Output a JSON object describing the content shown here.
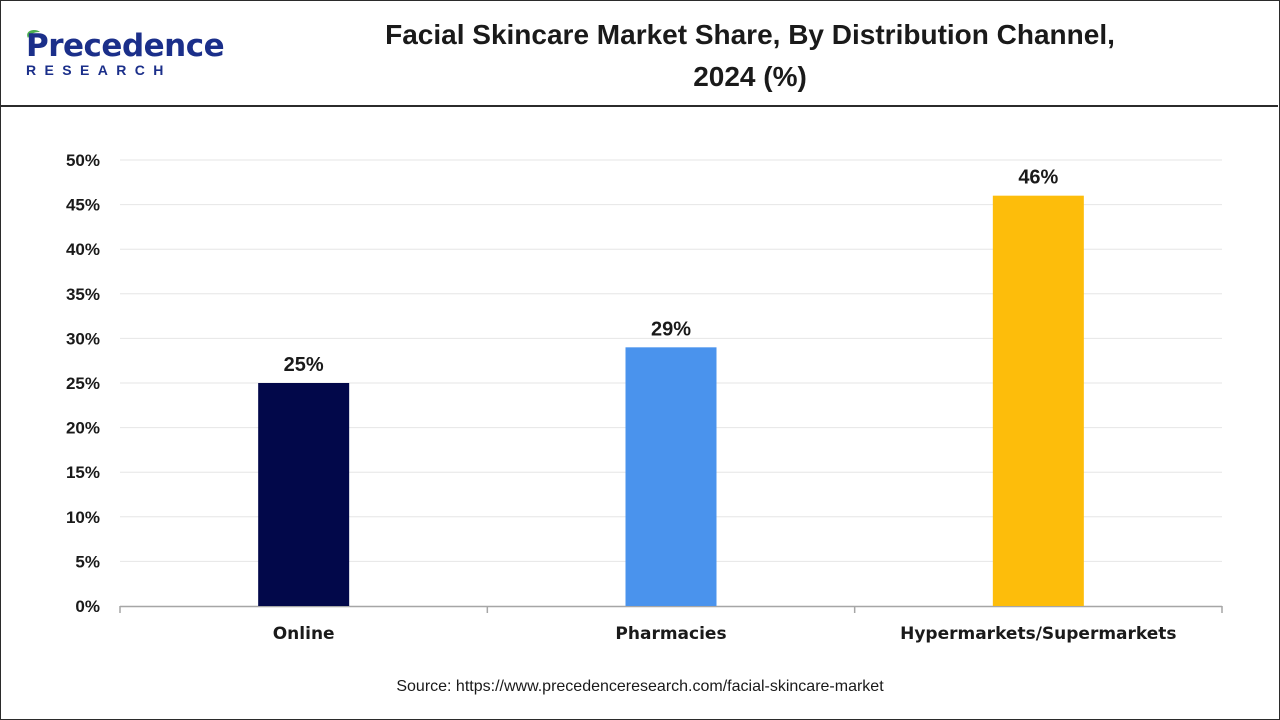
{
  "logo": {
    "main": "recedence",
    "initial": "P",
    "sub": "RESEARCH",
    "color": "#1b2f8a",
    "leaf_color": "#4caf50"
  },
  "title_line1": "Facial Skincare Market Share, By Distribution Channel,",
  "title_line2": "2024 (%)",
  "source": "Source: https://www.precedenceresearch.com/facial-skincare-market",
  "chart_data": {
    "type": "bar",
    "categories": [
      "Online",
      "Pharmacies",
      "Hypermarkets/Supermarkets"
    ],
    "values": [
      25,
      29,
      46
    ],
    "data_labels": [
      "25%",
      "29%",
      "46%"
    ],
    "colors": [
      "#02084a",
      "#4a93ed",
      "#fdbd0b"
    ],
    "ylim": [
      0,
      50
    ],
    "yticks": [
      0,
      5,
      10,
      15,
      20,
      25,
      30,
      35,
      40,
      45,
      50
    ],
    "ytick_labels": [
      "0%",
      "5%",
      "10%",
      "15%",
      "20%",
      "25%",
      "30%",
      "35%",
      "40%",
      "45%",
      "50%"
    ],
    "grid": true,
    "legend": "none",
    "xlabel": "",
    "ylabel": ""
  }
}
